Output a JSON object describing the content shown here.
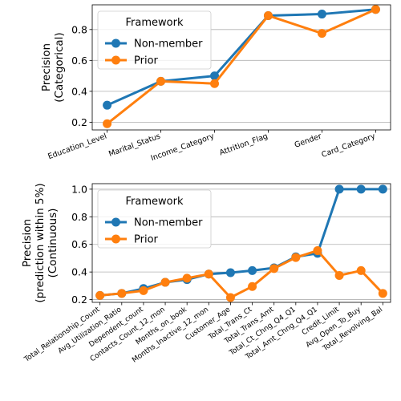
{
  "colors": {
    "non_member": "#1f77b4",
    "prior": "#ff7f0e",
    "grid": "#b0b0b0"
  },
  "chart_data": [
    {
      "type": "line",
      "ylabel_lines": [
        "Precision",
        "(Categorical)"
      ],
      "ylim": [
        0.15,
        0.96
      ],
      "yticks": [
        0.2,
        0.4,
        0.6,
        0.8
      ],
      "grid": "y",
      "legend": {
        "title": "Framework",
        "position": "top-left"
      },
      "categories": [
        "Education_Level",
        "Marital_Status",
        "Income_Category",
        "Attrition_Flag",
        "Gender",
        "Card_Category"
      ],
      "series": [
        {
          "name": "Non-member",
          "values": [
            0.31,
            0.465,
            0.5,
            0.89,
            0.9,
            0.93
          ]
        },
        {
          "name": "Prior",
          "values": [
            0.19,
            0.465,
            0.45,
            0.89,
            0.775,
            0.93
          ]
        }
      ]
    },
    {
      "type": "line",
      "ylabel_lines": [
        "Precision",
        "(prediction within 5%)",
        "(Continuous)"
      ],
      "ylim": [
        0.18,
        1.04
      ],
      "yticks": [
        0.2,
        0.4,
        0.6,
        0.8,
        1.0
      ],
      "grid": "y",
      "legend": {
        "title": "Framework",
        "position": "top-left"
      },
      "categories": [
        "Total_Relationship_Count",
        "Avg_Utilization_Ratio",
        "Dependent_count",
        "Contacts_Count_12_mon",
        "Months_on_book",
        "Months_Inactive_12_mon",
        "Customer_Age",
        "Total_Trans_Ct",
        "Total_Trans_Amt",
        "Total_Ct_Chng_Q4_Q1",
        "Total_Amt_Chng_Q4_Q1",
        "Credit_Limit",
        "Avg_Open_To_Buy",
        "Total_Revolving_Bal"
      ],
      "series": [
        {
          "name": "Non-member",
          "values": [
            0.23,
            0.245,
            0.28,
            0.325,
            0.345,
            0.385,
            0.395,
            0.41,
            0.43,
            0.51,
            0.535,
            1.0,
            1.0,
            1.0
          ]
        },
        {
          "name": "Prior",
          "values": [
            0.23,
            0.245,
            0.265,
            0.325,
            0.355,
            0.385,
            0.215,
            0.295,
            0.425,
            0.505,
            0.555,
            0.375,
            0.41,
            0.245
          ]
        }
      ]
    }
  ]
}
